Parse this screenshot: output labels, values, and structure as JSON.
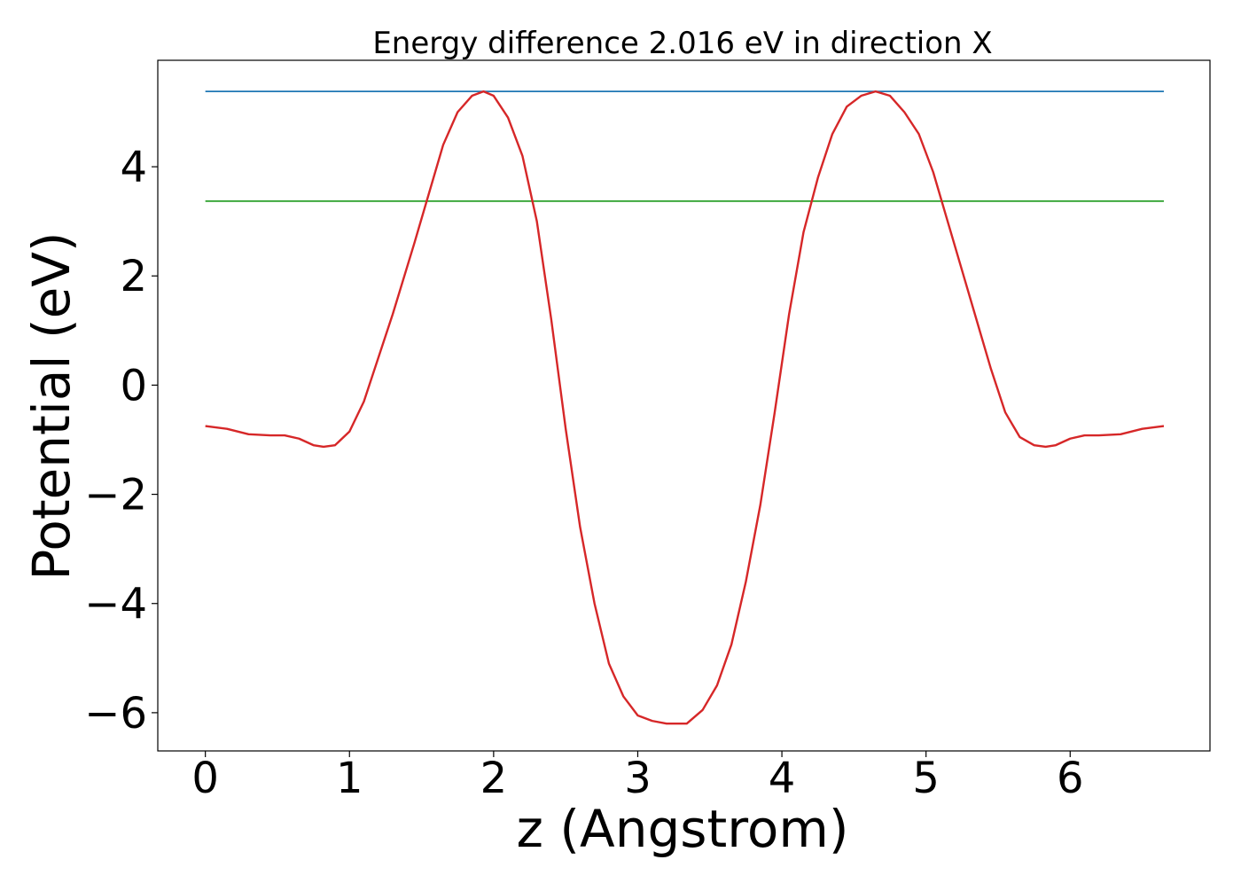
{
  "chart_data": {
    "type": "line",
    "title": "Energy difference 2.016 eV in direction X",
    "xlabel": "z (Angstrom)",
    "ylabel": "Potential (eV)",
    "xlim": [
      -0.33,
      6.97
    ],
    "ylim": [
      -6.7,
      5.95
    ],
    "xticks": [
      0,
      1,
      2,
      3,
      4,
      5,
      6
    ],
    "xtick_labels": [
      "0",
      "1",
      "2",
      "3",
      "4",
      "5",
      "6"
    ],
    "yticks": [
      -6,
      -4,
      -2,
      0,
      2,
      4
    ],
    "ytick_labels": [
      "−6",
      "−4",
      "−2",
      "0",
      "2",
      "4"
    ],
    "grid": false,
    "legend": "none",
    "series": [
      {
        "color": "#1f77b4",
        "x": [
          0,
          6.65
        ],
        "y": [
          5.38,
          5.38
        ]
      },
      {
        "color": "#2ca02c",
        "x": [
          0,
          6.65
        ],
        "y": [
          3.37,
          3.37
        ]
      },
      {
        "color": "#d62728",
        "x": [
          0.0,
          0.15,
          0.3,
          0.45,
          0.55,
          0.65,
          0.75,
          0.82,
          0.9,
          1.0,
          1.1,
          1.2,
          1.3,
          1.45,
          1.55,
          1.65,
          1.75,
          1.85,
          1.93,
          2.0,
          2.1,
          2.2,
          2.3,
          2.4,
          2.5,
          2.6,
          2.7,
          2.8,
          2.9,
          3.0,
          3.1,
          3.2,
          3.3,
          3.34,
          3.45,
          3.55,
          3.65,
          3.75,
          3.85,
          3.95,
          4.05,
          4.15,
          4.25,
          4.35,
          4.45,
          4.55,
          4.65,
          4.75,
          4.85,
          4.95,
          5.05,
          5.15,
          5.25,
          5.35,
          5.45,
          5.55,
          5.65,
          5.75,
          5.83,
          5.9,
          6.0,
          6.1,
          6.2,
          6.35,
          6.5,
          6.65
        ],
        "y": [
          -0.75,
          -0.8,
          -0.9,
          -0.92,
          -0.92,
          -0.98,
          -1.1,
          -1.13,
          -1.1,
          -0.85,
          -0.3,
          0.5,
          1.3,
          2.6,
          3.5,
          4.4,
          5.0,
          5.3,
          5.38,
          5.3,
          4.9,
          4.2,
          3.0,
          1.2,
          -0.8,
          -2.6,
          -4.0,
          -5.1,
          -5.7,
          -6.05,
          -6.15,
          -6.2,
          -6.2,
          -6.2,
          -5.95,
          -5.5,
          -4.75,
          -3.6,
          -2.2,
          -0.5,
          1.3,
          2.8,
          3.8,
          4.6,
          5.1,
          5.3,
          5.38,
          5.3,
          5.0,
          4.6,
          3.9,
          3.0,
          2.1,
          1.2,
          0.3,
          -0.5,
          -0.95,
          -1.1,
          -1.13,
          -1.1,
          -0.98,
          -0.92,
          -0.92,
          -0.9,
          -0.8,
          -0.75
        ]
      }
    ]
  }
}
